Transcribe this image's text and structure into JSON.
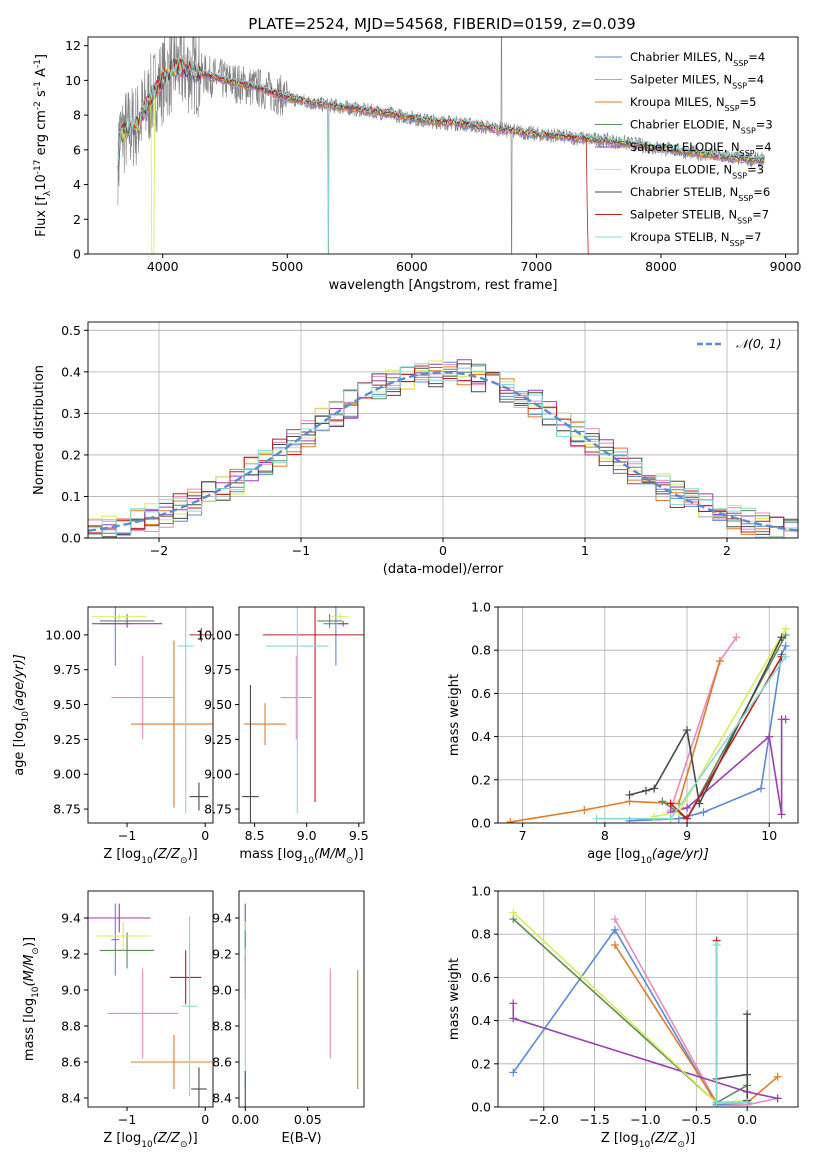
{
  "figure": {
    "title": "PLATE=2524, MJD=54568, FIBERID=0159, z=0.039"
  },
  "legend_spectrum": [
    {
      "name": "Chabrier MILES, N",
      "sub": "SSP",
      "suffix": "=4",
      "color": "#5b8bd6"
    },
    {
      "name": "Salpeter MILES, N",
      "sub": "SSP",
      "suffix": "=4",
      "color": "#e88bc0"
    },
    {
      "name": "Kroupa MILES, N",
      "sub": "SSP",
      "suffix": "=5",
      "color": "#e07b2a"
    },
    {
      "name": "Chabrier ELODIE, N",
      "sub": "SSP",
      "suffix": "=3",
      "color": "#5e8c5a"
    },
    {
      "name": "Salpeter ELODIE, N",
      "sub": "SSP",
      "suffix": "=4",
      "color": "#9b3fb0"
    },
    {
      "name": "Kroupa ELODIE, N",
      "sub": "SSP",
      "suffix": "=3",
      "color": "#d8ec58"
    },
    {
      "name": "Chabrier STELIB, N",
      "sub": "SSP",
      "suffix": "=6",
      "color": "#4a4a4a"
    },
    {
      "name": "Salpeter STELIB, N",
      "sub": "SSP",
      "suffix": "=7",
      "color": "#b82020"
    },
    {
      "name": "Kroupa STELIB, N",
      "sub": "SSP",
      "suffix": "=7",
      "color": "#8ad8d8"
    }
  ],
  "legend_hist": {
    "label": "𝒩(0, 1)",
    "color": "#5b8bd6"
  },
  "chart_data": [
    {
      "type": "line",
      "xlabel": "wavelength [Angstrom, rest frame]",
      "ylabel": "Flux [f",
      "ylabel_sub": "λ",
      "ylabel_rest": "10",
      "ylabel_sup1": "-17",
      "ylabel_unit": " erg cm",
      "ylabel_sup2": "-2",
      "ylabel_unit2": " s",
      "ylabel_sup3": "-1",
      "ylabel_unit3": " A",
      "ylabel_sup4": "-1",
      "ylabel_end": "]",
      "xlim": [
        3400,
        9100
      ],
      "ylim": [
        0,
        12.5
      ],
      "xticks": [
        "4000",
        "5000",
        "6000",
        "7000",
        "8000",
        "9000"
      ],
      "yticks": [
        "0",
        "2",
        "4",
        "6",
        "8",
        "10",
        "12"
      ],
      "data_color": "#808080",
      "model_continuum": {
        "x": [
          3650,
          3800,
          3950,
          4100,
          4300,
          4500,
          4800,
          5000,
          5200,
          5500,
          5800,
          6100,
          6400,
          6700,
          7000,
          7300,
          7600,
          7900,
          8200,
          8500,
          8800
        ],
        "y": [
          6.8,
          7.5,
          9.6,
          10.8,
          10.4,
          10.0,
          9.5,
          9.0,
          8.7,
          8.4,
          8.1,
          7.7,
          7.5,
          7.2,
          6.9,
          6.7,
          6.5,
          6.2,
          5.9,
          5.6,
          5.4
        ]
      }
    },
    {
      "type": "line",
      "xlabel": "(data-model)/error",
      "ylabel": "Normed distribution",
      "xlim": [
        -2.5,
        2.5
      ],
      "ylim": [
        0,
        0.52
      ],
      "xticks": [
        "−2",
        "−1",
        "0",
        "1",
        "2"
      ],
      "yticks": [
        "0.0",
        "0.1",
        "0.2",
        "0.3",
        "0.4",
        "0.5"
      ],
      "grid": true
    },
    {
      "type": "scatter",
      "xlabel": "Z [log",
      "xlabel_sub": "10",
      "xlabel_rest": "(Z/Z",
      "xlabel_sun": "⊙",
      "xlabel_end": ")]",
      "ylabel": "age  [log",
      "ylabel_sub": "10",
      "ylabel_rest": "(age/yr)]",
      "xlim": [
        -1.5,
        0.1
      ],
      "ylim": [
        8.65,
        10.2
      ],
      "xticks": [
        "−1",
        "0"
      ],
      "yticks": [
        "8.75",
        "9.00",
        "9.25",
        "9.50",
        "9.75",
        "10.00"
      ],
      "points": [
        {
          "x": -1.15,
          "y": 10.08,
          "xerr": 0.2,
          "yerr": 0.3,
          "series": 0
        },
        {
          "x": -0.8,
          "y": 9.55,
          "xerr": 0.4,
          "yerr": 0.3,
          "series": 1
        },
        {
          "x": -0.4,
          "y": 9.36,
          "xerr": 0.55,
          "yerr": 0.6,
          "series": 2
        },
        {
          "x": -1.0,
          "y": 10.1,
          "xerr": 0.35,
          "yerr": 0.05,
          "series": 3
        },
        {
          "x": -1.0,
          "y": 10.08,
          "xerr": 0.45,
          "yerr": 0.02,
          "series": 4
        },
        {
          "x": -1.1,
          "y": 10.13,
          "xerr": 0.35,
          "yerr": 0.02,
          "series": 5
        },
        {
          "x": -0.08,
          "y": 8.84,
          "xerr": 0.12,
          "yerr": 0.1,
          "series": 6
        },
        {
          "x": -0.05,
          "y": 10.0,
          "xerr": 0.15,
          "yerr": 0.05,
          "series": 7
        },
        {
          "x": -0.25,
          "y": 9.92,
          "xerr": 0.1,
          "yerr": 1.2,
          "series": 8
        }
      ]
    },
    {
      "type": "scatter",
      "xlabel": "mass [log",
      "xlabel_sub": "10",
      "xlabel_rest": "(M/M",
      "xlabel_sun": "⊙",
      "xlabel_end": ")]",
      "xlim": [
        8.35,
        9.55
      ],
      "ylim": [
        8.65,
        10.2
      ],
      "xticks": [
        "8.5",
        "9.0",
        "9.5"
      ],
      "yticks": [
        "8.75",
        "9.00",
        "9.25",
        "9.50",
        "9.75",
        "10.00"
      ],
      "points": [
        {
          "x": 9.28,
          "y": 10.08,
          "xerr": 0.12,
          "yerr": 0.3,
          "series": 0
        },
        {
          "x": 8.9,
          "y": 9.55,
          "xerr": 0.15,
          "yerr": 0.3,
          "series": 1
        },
        {
          "x": 8.6,
          "y": 9.36,
          "xerr": 0.2,
          "yerr": 0.15,
          "series": 2
        },
        {
          "x": 9.22,
          "y": 10.1,
          "xerr": 0.12,
          "yerr": 0.05,
          "series": 3
        },
        {
          "x": 9.35,
          "y": 10.08,
          "xerr": 0.05,
          "yerr": 0.02,
          "series": 4
        },
        {
          "x": 9.32,
          "y": 10.13,
          "xerr": 0.08,
          "yerr": 0.02,
          "series": 5
        },
        {
          "x": 8.46,
          "y": 8.84,
          "xerr": 0.08,
          "yerr": 0.8,
          "series": 6
        },
        {
          "x": 9.08,
          "y": 10.0,
          "xerr": 0.5,
          "yerr": 1.2,
          "series": 7
        },
        {
          "x": 8.91,
          "y": 9.92,
          "xerr": 0.3,
          "yerr": 1.2,
          "series": 8
        }
      ]
    },
    {
      "type": "line",
      "xlabel": "age  [log",
      "xlabel_sub": "10",
      "xlabel_rest": "(age/yr)]",
      "ylabel": "mass weight",
      "xlim": [
        6.7,
        10.35
      ],
      "ylim": [
        0,
        1
      ],
      "xticks": [
        "7",
        "8",
        "9",
        "10"
      ],
      "yticks": [
        "0.0",
        "0.2",
        "0.4",
        "0.6",
        "0.8",
        "1.0"
      ],
      "grid": true,
      "series": [
        {
          "x": [
            8.3,
            8.9,
            9.2,
            9.9,
            10.15,
            10.2
          ],
          "y": [
            0.01,
            0.02,
            0.05,
            0.16,
            0.78,
            0.82
          ],
          "series": 0
        },
        {
          "x": [
            8.8,
            9.4,
            9.6
          ],
          "y": [
            0.06,
            0.75,
            0.86
          ],
          "series": 1
        },
        {
          "x": [
            6.85,
            7.75,
            8.3,
            8.9,
            9.4
          ],
          "y": [
            0.005,
            0.06,
            0.1,
            0.09,
            0.75
          ],
          "series": 2
        },
        {
          "x": [
            8.7,
            9.0,
            10.2
          ],
          "y": [
            0.1,
            0.02,
            0.87
          ],
          "series": 3
        },
        {
          "x": [
            8.8,
            9.0,
            10.0,
            10.15,
            10.15,
            10.2
          ],
          "y": [
            0.05,
            0.07,
            0.4,
            0.04,
            0.48,
            0.48
          ],
          "series": 4
        },
        {
          "x": [
            8.6,
            8.9,
            10.2
          ],
          "y": [
            0.03,
            0.05,
            0.9
          ],
          "series": 5
        },
        {
          "x": [
            8.3,
            8.5,
            8.6,
            9.0,
            9.15,
            10.15
          ],
          "y": [
            0.13,
            0.15,
            0.16,
            0.43,
            0.09,
            0.86
          ],
          "series": 6
        },
        {
          "x": [
            8.8,
            9.0,
            10.15
          ],
          "y": [
            0.09,
            0.02,
            0.77
          ],
          "series": 7
        },
        {
          "x": [
            7.9,
            8.8,
            10.2
          ],
          "y": [
            0.02,
            0.02,
            0.77
          ],
          "series": 8
        }
      ]
    },
    {
      "type": "scatter",
      "xlabel": "Z [log",
      "xlabel_sub": "10",
      "xlabel_rest": "(Z/Z",
      "xlabel_sun": "⊙",
      "xlabel_end": ")]",
      "ylabel": "mass [log",
      "ylabel_sub": "10",
      "ylabel_rest": "(M/M",
      "ylabel_sun": "⊙",
      "ylabel_end": ")]",
      "xlim": [
        -1.5,
        0.1
      ],
      "ylim": [
        8.35,
        9.55
      ],
      "xticks": [
        "−1",
        "0"
      ],
      "yticks": [
        "8.4",
        "8.6",
        "8.8",
        "9.0",
        "9.2",
        "9.4"
      ],
      "points": [
        {
          "x": -1.15,
          "y": 9.28,
          "xerr": 0.05,
          "yerr": 0.2,
          "series": 0
        },
        {
          "x": -0.8,
          "y": 8.87,
          "xerr": 0.45,
          "yerr": 0.25,
          "series": 1
        },
        {
          "x": -0.4,
          "y": 8.6,
          "xerr": 0.55,
          "yerr": 0.15,
          "series": 2
        },
        {
          "x": -1.0,
          "y": 9.22,
          "xerr": 0.35,
          "yerr": 0.1,
          "series": 3
        },
        {
          "x": -1.1,
          "y": 9.4,
          "xerr": 0.4,
          "yerr": 0.08,
          "series": 4
        },
        {
          "x": -1.05,
          "y": 9.3,
          "xerr": 0.35,
          "yerr": 0.08,
          "series": 5
        },
        {
          "x": -0.08,
          "y": 8.45,
          "xerr": 0.1,
          "yerr": 0.12,
          "series": 6
        },
        {
          "x": -0.25,
          "y": 9.07,
          "xerr": 0.2,
          "yerr": 0.15,
          "series": 7
        },
        {
          "x": -0.2,
          "y": 8.91,
          "xerr": 0.1,
          "yerr": 0.5,
          "series": 8
        }
      ]
    },
    {
      "type": "scatter",
      "xlabel": "E(B-V)",
      "xlim": [
        -0.005,
        0.095
      ],
      "ylim": [
        8.35,
        9.55
      ],
      "xticks": [
        "0.00",
        "0.05"
      ],
      "yticks": [
        "8.4",
        "8.6",
        "8.8",
        "9.0",
        "9.2",
        "9.4"
      ],
      "points": [
        {
          "x": 0.0,
          "y": 9.4,
          "xerr": 0.0,
          "yerr": 0.08,
          "series": 4
        },
        {
          "x": 0.0,
          "y": 9.3,
          "xerr": 0.0,
          "yerr": 0.08,
          "series": 5
        },
        {
          "x": 0.0,
          "y": 9.22,
          "xerr": 0.0,
          "yerr": 0.08,
          "series": 3
        },
        {
          "x": 0.0,
          "y": 9.07,
          "xerr": 0.0,
          "yerr": 0.12,
          "series": 7
        },
        {
          "x": 0.0,
          "y": 8.91,
          "xerr": 0.0,
          "yerr": 0.45,
          "series": 8
        },
        {
          "x": 0.0,
          "y": 8.45,
          "xerr": 0.0,
          "yerr": 0.1,
          "series": 6
        },
        {
          "x": 0.0,
          "y": 9.28,
          "xerr": 0.0,
          "yerr": 0.05,
          "series": 0
        },
        {
          "x": 0.068,
          "y": 8.87,
          "xerr": 0.0,
          "yerr": 0.25,
          "series": 1
        },
        {
          "x": 0.09,
          "y": 8.78,
          "xerr": 0.0,
          "yerr": 0.33,
          "series": 2
        }
      ]
    },
    {
      "type": "line",
      "xlabel": "Z [log",
      "xlabel_sub": "10",
      "xlabel_rest": "(Z/Z",
      "xlabel_sun": "⊙",
      "xlabel_end": ")]",
      "ylabel": "mass weight",
      "xlim": [
        -2.45,
        0.5
      ],
      "ylim": [
        0,
        1
      ],
      "xticks": [
        "−2.0",
        "−1.5",
        "−1.0",
        "−0.5",
        "0.0"
      ],
      "yticks": [
        "0.0",
        "0.2",
        "0.4",
        "0.6",
        "0.8",
        "1.0"
      ],
      "grid": true,
      "series": [
        {
          "x": [
            -2.3,
            -1.3,
            -0.3,
            0.0
          ],
          "y": [
            0.16,
            0.82,
            0.01,
            0.01
          ],
          "series": 0
        },
        {
          "x": [
            -1.3,
            -0.3,
            0.0,
            0.3
          ],
          "y": [
            0.87,
            0.02,
            0.01,
            0.04
          ],
          "series": 1
        },
        {
          "x": [
            -1.3,
            -0.3,
            0.0,
            0.3
          ],
          "y": [
            0.75,
            0.02,
            0.02,
            0.14
          ],
          "series": 2
        },
        {
          "x": [
            -2.3,
            -0.3,
            0.0
          ],
          "y": [
            0.87,
            0.02,
            0.1
          ],
          "series": 3
        },
        {
          "x": [
            -2.3,
            -2.3,
            0.0,
            0.3
          ],
          "y": [
            0.48,
            0.41,
            0.07,
            0.04
          ],
          "series": 4
        },
        {
          "x": [
            -2.3,
            -0.3,
            0.0
          ],
          "y": [
            0.9,
            0.02,
            0.03
          ],
          "series": 5
        },
        {
          "x": [
            -0.3,
            0.0,
            0.0,
            0.0
          ],
          "y": [
            0.13,
            0.15,
            0.43,
            0.03
          ],
          "series": 6
        },
        {
          "x": [
            -0.3,
            -0.3,
            0.0
          ],
          "y": [
            0.77,
            0.02,
            0.02
          ],
          "series": 7
        },
        {
          "x": [
            -0.3,
            -0.3,
            0.0
          ],
          "y": [
            0.75,
            0.02,
            0.02
          ],
          "series": 8
        }
      ]
    }
  ]
}
